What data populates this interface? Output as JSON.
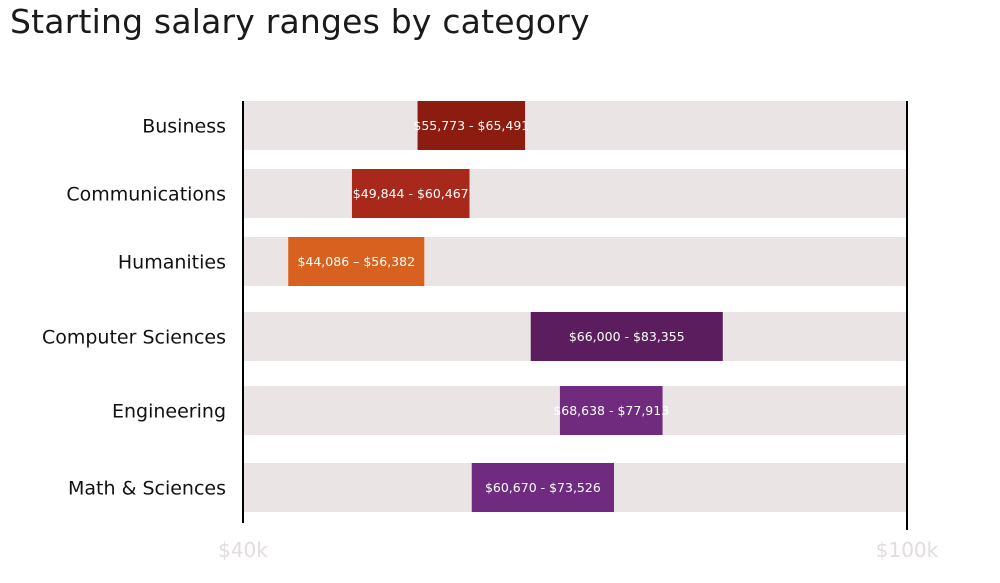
{
  "title": "Starting salary ranges by category",
  "colors": {
    "track": "#ebe4e4",
    "axis": "#000000"
  },
  "chart_data": {
    "type": "bar",
    "subtype": "floating-range",
    "title": "Starting salary ranges by category",
    "xlim": [
      40000,
      100000
    ],
    "x_tick_labels": [
      "$40k",
      "$100k"
    ],
    "grid": false,
    "categories": [
      "Business",
      "Communications",
      "Humanities",
      "Computer Sciences",
      "Engineering",
      "Math & Sciences"
    ],
    "ranges": [
      {
        "category": "Business",
        "low": 55773,
        "high": 65491,
        "label": "$55,773 - $65,491",
        "color": "#8c1c0f"
      },
      {
        "category": "Communications",
        "low": 49844,
        "high": 60467,
        "label": "$49,844 - $60,467",
        "color": "#a8291b"
      },
      {
        "category": "Humanities",
        "low": 44086,
        "high": 56382,
        "label": "$44,086 – $56,382",
        "color": "#d8611f"
      },
      {
        "category": "Computer Sciences",
        "low": 66000,
        "high": 83355,
        "label": "$66,000 - $83,355",
        "color": "#5c1d5e"
      },
      {
        "category": "Engineering",
        "low": 68638,
        "high": 77913,
        "label": "$68,638 - $77,913",
        "color": "#702a7e"
      },
      {
        "category": "Math & Sciences",
        "low": 60670,
        "high": 73526,
        "label": "$60,670 - $73,526",
        "color": "#6f2b80"
      }
    ]
  }
}
